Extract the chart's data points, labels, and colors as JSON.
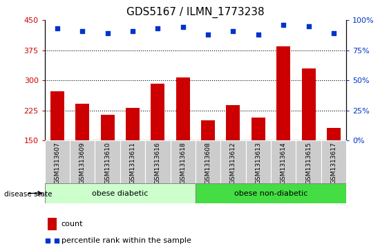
{
  "title": "GDS5167 / ILMN_1773238",
  "samples": [
    "GSM1313607",
    "GSM1313609",
    "GSM1313610",
    "GSM1313611",
    "GSM1313616",
    "GSM1313618",
    "GSM1313608",
    "GSM1313612",
    "GSM1313613",
    "GSM1313614",
    "GSM1313615",
    "GSM1313617"
  ],
  "counts": [
    272,
    242,
    215,
    232,
    292,
    307,
    200,
    238,
    207,
    385,
    330,
    182
  ],
  "percentiles": [
    93,
    91,
    89,
    91,
    93,
    94,
    88,
    91,
    88,
    96,
    95,
    89
  ],
  "group1_label": "obese diabetic",
  "group2_label": "obese non-diabetic",
  "group1_count": 6,
  "group2_count": 6,
  "disease_state_label": "disease state",
  "ylim_left": [
    150,
    450
  ],
  "ylim_right": [
    0,
    100
  ],
  "yticks_left": [
    150,
    225,
    300,
    375,
    450
  ],
  "yticks_right": [
    0,
    25,
    50,
    75,
    100
  ],
  "bar_color": "#cc0000",
  "dot_color": "#0033cc",
  "group1_bg": "#ccffcc",
  "group2_bg": "#44dd44",
  "tick_label_bg": "#cccccc",
  "legend_count_label": "count",
  "legend_pct_label": "percentile rank within the sample",
  "title_fontsize": 11,
  "tick_fontsize": 8,
  "label_fontsize": 8,
  "grid_lines": [
    225,
    300,
    375
  ]
}
